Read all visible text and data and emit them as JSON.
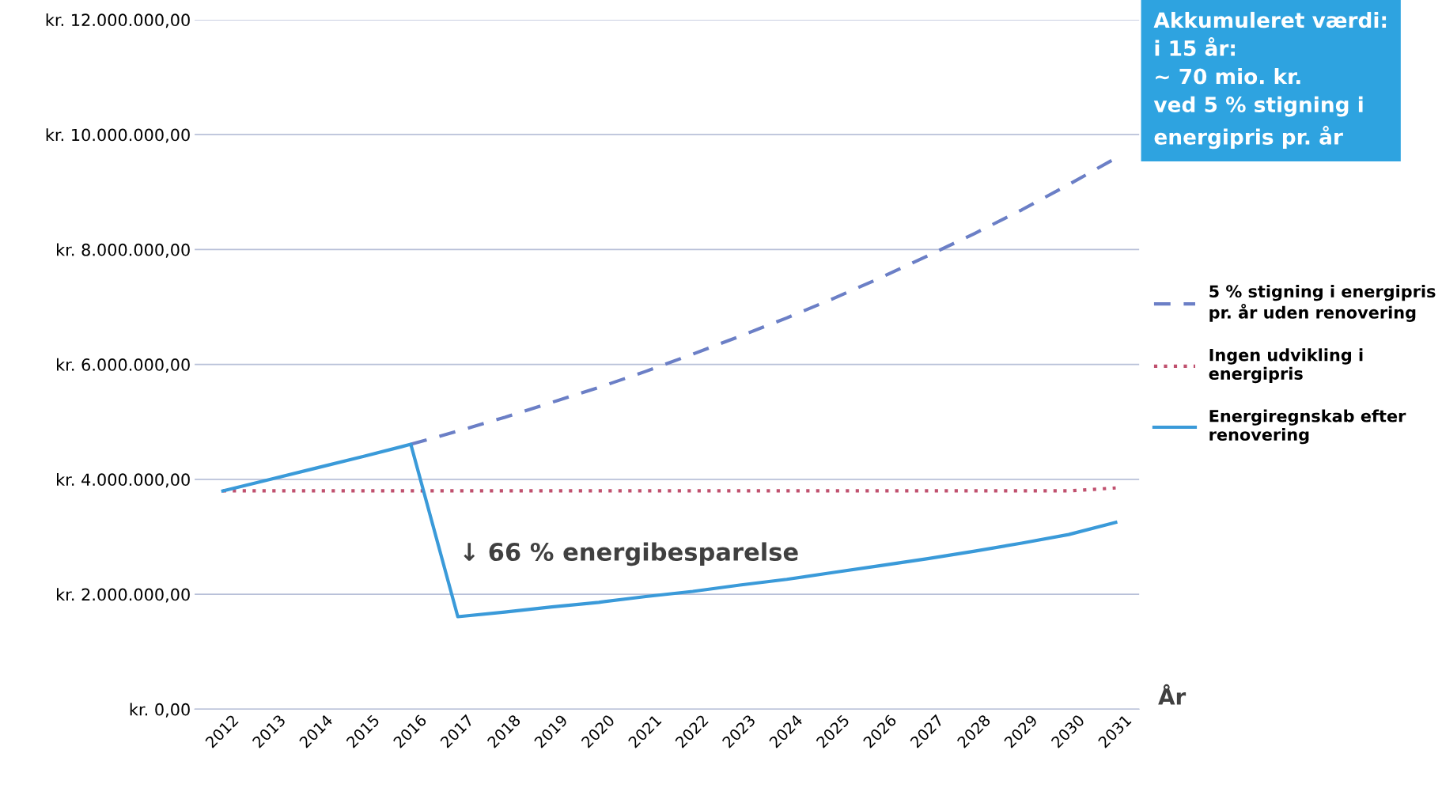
{
  "chart_data": {
    "type": "line",
    "categories": [
      "2012",
      "2013",
      "2014",
      "2015",
      "2016",
      "2017",
      "2018",
      "2019",
      "2020",
      "2021",
      "2022",
      "2023",
      "2024",
      "2025",
      "2026",
      "2027",
      "2028",
      "2029",
      "2030",
      "2031"
    ],
    "series": [
      {
        "name": "5 % stigning i energipris\npr. år uden renovering",
        "color": "#6b7fc6",
        "line_style": "dashed",
        "values": [
          null,
          null,
          null,
          null,
          4610000,
          4840000,
          5080000,
          5340000,
          5600000,
          5880000,
          6180000,
          6490000,
          6810000,
          7150000,
          7510000,
          7890000,
          8280000,
          8690000,
          9130000,
          9590000
        ]
      },
      {
        "name": "Ingen udvikling i\nenergipris",
        "color": "#c0506e",
        "line_style": "dotted",
        "values": [
          3800000,
          3800000,
          3800000,
          3800000,
          3800000,
          3800000,
          3800000,
          3800000,
          3800000,
          3800000,
          3800000,
          3800000,
          3800000,
          3800000,
          3800000,
          3800000,
          3800000,
          3800000,
          3800000,
          3850000
        ]
      },
      {
        "name": "Energiregnskab efter\nrenovering",
        "color": "#3a9ad9",
        "line_style": "solid",
        "values": [
          3800000,
          4000000,
          4200000,
          4400000,
          4610000,
          1610000,
          1690000,
          1780000,
          1860000,
          1960000,
          2050000,
          2160000,
          2260000,
          2380000,
          2500000,
          2620000,
          2750000,
          2890000,
          3040000,
          3250000
        ]
      }
    ],
    "ylim": [
      0,
      12000000
    ],
    "yticks": [
      {
        "value": 0,
        "label": "kr. 0,00"
      },
      {
        "value": 2000000,
        "label": "kr. 2.000.000,00"
      },
      {
        "value": 4000000,
        "label": "kr. 4.000.000,00"
      },
      {
        "value": 6000000,
        "label": "kr. 6.000.000,00"
      },
      {
        "value": 8000000,
        "label": "kr. 8.000.000,00"
      },
      {
        "value": 10000000,
        "label": "kr. 10.000.000,00"
      },
      {
        "value": 12000000,
        "label": "kr. 12.000.000,00"
      }
    ],
    "xlabel": "År",
    "grid": "y",
    "legend": "right",
    "marker": "none",
    "annotations": [
      "Akkumuleret værdi:\ni 15 år:\n~ 70 mio. kr.\nved 5 % stigning i\nenergipris pr. år",
      "↓ 66 % energibesparelse"
    ]
  }
}
